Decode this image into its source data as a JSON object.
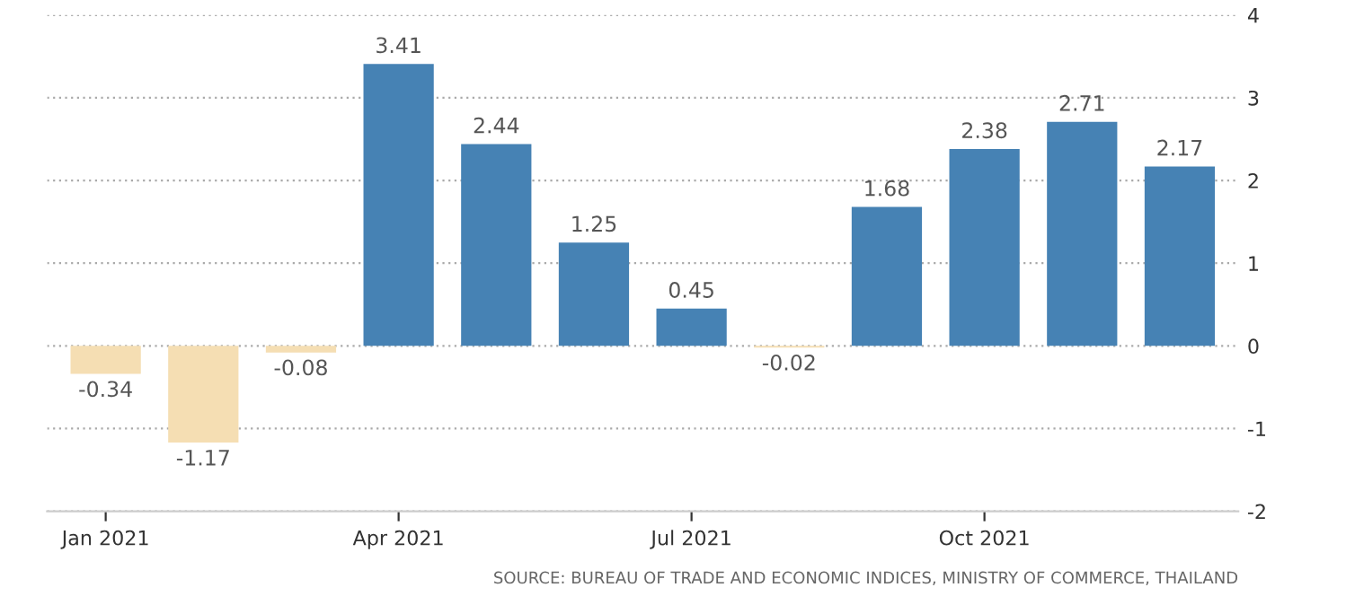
{
  "chart_data": {
    "type": "bar",
    "categories": [
      "Jan 2021",
      null,
      null,
      "Apr 2021",
      null,
      null,
      "Jul 2021",
      null,
      null,
      "Oct 2021",
      null,
      null
    ],
    "values": [
      -0.34,
      -1.17,
      -0.08,
      3.41,
      2.44,
      1.25,
      0.45,
      -0.02,
      1.68,
      2.38,
      2.71,
      2.17
    ],
    "colors": [
      "#f5deb3",
      "#f5deb3",
      "#f5deb3",
      "#4682b4",
      "#4682b4",
      "#4682b4",
      "#4682b4",
      "#f5deb3",
      "#4682b4",
      "#4682b4",
      "#4682b4",
      "#4682b4"
    ],
    "ylim": [
      -2,
      4
    ],
    "yticks": [
      -2,
      -1,
      0,
      1,
      2,
      3,
      4
    ],
    "grid": "y",
    "data_labels": true,
    "annotations": [
      "SOURCE: BUREAU OF TRADE AND ECONOMIC INDICES, MINISTRY OF COMMERCE, THAILAND"
    ]
  }
}
